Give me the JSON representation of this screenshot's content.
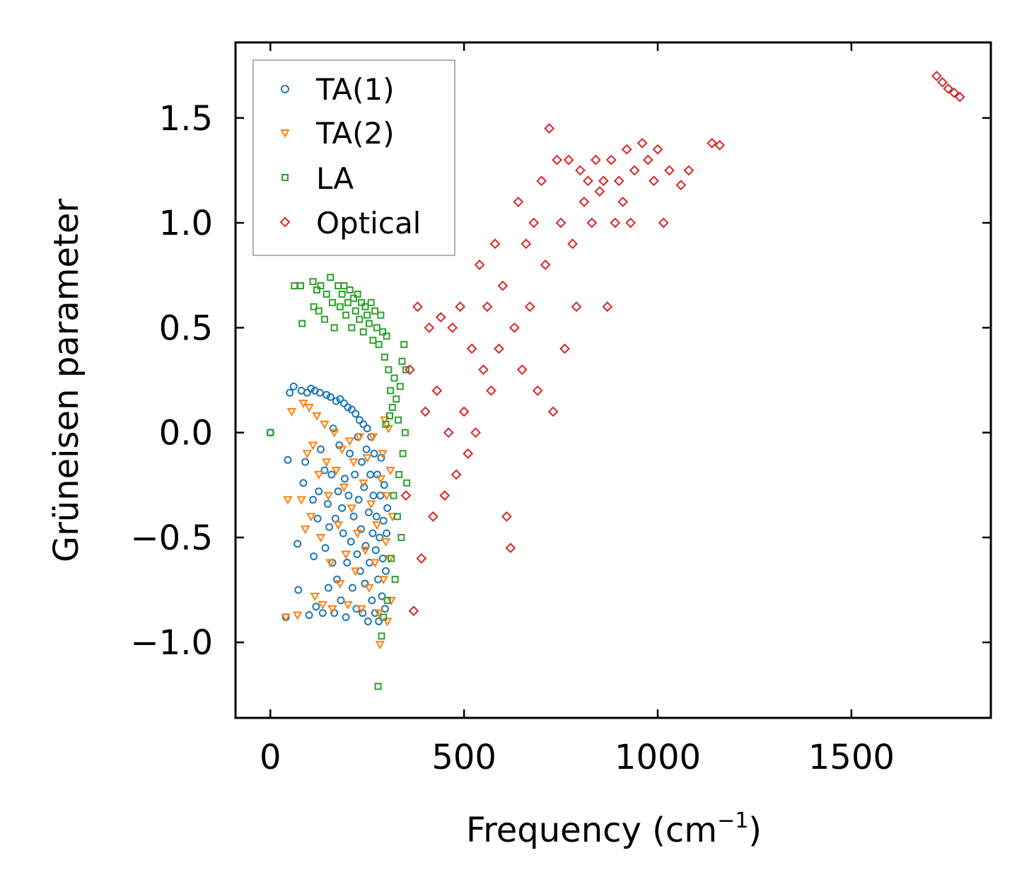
{
  "chart_data": {
    "type": "scatter",
    "title": "",
    "xlabel": "Frequency (cm",
    "xlabel_sup": "−1",
    "xlabel_close": ")",
    "ylabel": "Grüneisen parameter",
    "xlim": [
      -90,
      1860
    ],
    "ylim": [
      -1.36,
      1.86
    ],
    "xticks": [
      0,
      500,
      1000,
      1500
    ],
    "xtick_labels": [
      "0",
      "500",
      "1000",
      "1500"
    ],
    "yticks": [
      -1.0,
      -0.5,
      0.0,
      0.5,
      1.0,
      1.5
    ],
    "ytick_labels": [
      "−1.0",
      "−0.5",
      "0.0",
      "0.5",
      "1.0",
      "1.5"
    ],
    "legend_position": "top-left",
    "series": [
      {
        "name": "TA(1)",
        "marker": "circle",
        "color": "#1f77b4",
        "points": [
          [
            0,
            0.0
          ],
          [
            40,
            -0.88
          ],
          [
            45,
            -0.13
          ],
          [
            50,
            0.19
          ],
          [
            60,
            0.22
          ],
          [
            70,
            -0.53
          ],
          [
            72,
            -0.75
          ],
          [
            80,
            0.2
          ],
          [
            85,
            -0.24
          ],
          [
            90,
            -0.14
          ],
          [
            95,
            0.19
          ],
          [
            100,
            -0.87
          ],
          [
            105,
            0.21
          ],
          [
            110,
            -0.32
          ],
          [
            112,
            -0.59
          ],
          [
            115,
            0.2
          ],
          [
            118,
            -0.83
          ],
          [
            122,
            -0.41
          ],
          [
            125,
            -0.28
          ],
          [
            128,
            0.19
          ],
          [
            130,
            -0.08
          ],
          [
            135,
            -0.86
          ],
          [
            140,
            -0.18
          ],
          [
            142,
            -0.55
          ],
          [
            145,
            0.18
          ],
          [
            148,
            -0.34
          ],
          [
            150,
            -0.74
          ],
          [
            152,
            -0.45
          ],
          [
            155,
            0.17
          ],
          [
            158,
            -0.2
          ],
          [
            160,
            -0.62
          ],
          [
            162,
            0.02
          ],
          [
            165,
            -0.86
          ],
          [
            168,
            -0.41
          ],
          [
            170,
            0.15
          ],
          [
            172,
            -0.7
          ],
          [
            175,
            -0.28
          ],
          [
            178,
            -0.06
          ],
          [
            180,
            0.16
          ],
          [
            182,
            -0.8
          ],
          [
            185,
            -0.36
          ],
          [
            188,
            -0.48
          ],
          [
            190,
            0.14
          ],
          [
            192,
            -0.22
          ],
          [
            195,
            -0.88
          ],
          [
            198,
            -0.62
          ],
          [
            200,
            0.12
          ],
          [
            202,
            -0.3
          ],
          [
            205,
            -0.1
          ],
          [
            208,
            -0.52
          ],
          [
            210,
            0.11
          ],
          [
            212,
            -0.74
          ],
          [
            215,
            -0.4
          ],
          [
            218,
            -0.2
          ],
          [
            220,
            0.09
          ],
          [
            222,
            -0.84
          ],
          [
            224,
            -0.58
          ],
          [
            226,
            -0.02
          ],
          [
            228,
            -0.32
          ],
          [
            230,
            0.06
          ],
          [
            232,
            -0.66
          ],
          [
            234,
            -0.46
          ],
          [
            236,
            -0.14
          ],
          [
            238,
            -0.86
          ],
          [
            240,
            0.04
          ],
          [
            242,
            -0.26
          ],
          [
            244,
            -0.72
          ],
          [
            246,
            -0.54
          ],
          [
            248,
            -0.08
          ],
          [
            250,
            0.02
          ],
          [
            252,
            -0.9
          ],
          [
            254,
            -0.38
          ],
          [
            256,
            -0.62
          ],
          [
            258,
            -0.2
          ],
          [
            260,
            -0.02
          ],
          [
            262,
            -0.8
          ],
          [
            264,
            -0.48
          ],
          [
            266,
            -0.3
          ],
          [
            268,
            -0.1
          ],
          [
            270,
            -0.86
          ],
          [
            272,
            -0.56
          ],
          [
            274,
            -0.4
          ],
          [
            276,
            -0.2
          ],
          [
            278,
            -0.7
          ],
          [
            280,
            -0.9
          ],
          [
            282,
            -0.5
          ],
          [
            284,
            -0.3
          ],
          [
            286,
            -0.12
          ],
          [
            288,
            -0.78
          ],
          [
            290,
            -0.6
          ],
          [
            292,
            -0.42
          ],
          [
            294,
            -0.25
          ],
          [
            296,
            -0.84
          ],
          [
            298,
            -0.66
          ],
          [
            300,
            -0.48
          ],
          [
            302,
            -0.36
          ]
        ]
      },
      {
        "name": "TA(2)",
        "marker": "triangle",
        "color": "#ff7f0e",
        "points": [
          [
            40,
            -0.88
          ],
          [
            45,
            -0.32
          ],
          [
            55,
            0.1
          ],
          [
            70,
            -0.87
          ],
          [
            80,
            -0.32
          ],
          [
            85,
            0.14
          ],
          [
            90,
            -0.46
          ],
          [
            95,
            -0.1
          ],
          [
            100,
            0.12
          ],
          [
            105,
            -0.4
          ],
          [
            110,
            -0.06
          ],
          [
            115,
            -0.78
          ],
          [
            120,
            0.08
          ],
          [
            125,
            -0.2
          ],
          [
            130,
            -0.5
          ],
          [
            135,
            -0.82
          ],
          [
            140,
            0.04
          ],
          [
            145,
            -0.14
          ],
          [
            150,
            -0.3
          ],
          [
            155,
            -0.62
          ],
          [
            160,
            -0.84
          ],
          [
            165,
            0.0
          ],
          [
            170,
            -0.18
          ],
          [
            175,
            -0.44
          ],
          [
            180,
            -0.72
          ],
          [
            185,
            -0.08
          ],
          [
            190,
            -0.26
          ],
          [
            195,
            -0.58
          ],
          [
            200,
            -0.82
          ],
          [
            205,
            -0.04
          ],
          [
            210,
            -0.36
          ],
          [
            215,
            -0.14
          ],
          [
            220,
            -0.66
          ],
          [
            225,
            -0.48
          ],
          [
            230,
            -0.02
          ],
          [
            235,
            -0.84
          ],
          [
            240,
            -0.24
          ],
          [
            245,
            -0.56
          ],
          [
            250,
            -0.12
          ],
          [
            255,
            -0.74
          ],
          [
            260,
            -0.34
          ],
          [
            265,
            -0.02
          ],
          [
            270,
            -0.62
          ],
          [
            275,
            -0.44
          ],
          [
            280,
            -0.86
          ],
          [
            283,
            -1.01
          ],
          [
            285,
            -0.22
          ],
          [
            290,
            -0.1
          ],
          [
            292,
            -0.7
          ],
          [
            295,
            0.06
          ],
          [
            298,
            -0.52
          ],
          [
            300,
            -0.3
          ],
          [
            302,
            -0.9
          ],
          [
            305,
            0.02
          ],
          [
            308,
            -0.6
          ],
          [
            310,
            -0.18
          ],
          [
            312,
            -0.8
          ],
          [
            315,
            -0.4
          ]
        ]
      },
      {
        "name": "LA",
        "marker": "square",
        "color": "#2ca02c",
        "points": [
          [
            0,
            0.0
          ],
          [
            62,
            0.7
          ],
          [
            78,
            0.7
          ],
          [
            82,
            0.52
          ],
          [
            110,
            0.72
          ],
          [
            112,
            0.6
          ],
          [
            120,
            0.68
          ],
          [
            125,
            0.58
          ],
          [
            130,
            0.7
          ],
          [
            140,
            0.54
          ],
          [
            145,
            0.66
          ],
          [
            155,
            0.74
          ],
          [
            160,
            0.62
          ],
          [
            165,
            0.5
          ],
          [
            175,
            0.7
          ],
          [
            180,
            0.6
          ],
          [
            185,
            0.66
          ],
          [
            190,
            0.7
          ],
          [
            195,
            0.56
          ],
          [
            200,
            0.62
          ],
          [
            205,
            0.68
          ],
          [
            210,
            0.5
          ],
          [
            215,
            0.64
          ],
          [
            220,
            0.58
          ],
          [
            225,
            0.66
          ],
          [
            230,
            0.54
          ],
          [
            235,
            0.62
          ],
          [
            240,
            0.48
          ],
          [
            245,
            0.6
          ],
          [
            250,
            0.56
          ],
          [
            255,
            0.52
          ],
          [
            260,
            0.62
          ],
          [
            265,
            0.44
          ],
          [
            270,
            0.58
          ],
          [
            275,
            0.5
          ],
          [
            278,
            -1.21
          ],
          [
            280,
            0.42
          ],
          [
            285,
            0.56
          ],
          [
            287,
            -0.97
          ],
          [
            290,
            0.48
          ],
          [
            292,
            -0.88
          ],
          [
            295,
            0.36
          ],
          [
            298,
            0.04
          ],
          [
            300,
            0.46
          ],
          [
            302,
            -0.8
          ],
          [
            305,
            0.3
          ],
          [
            308,
            0.08
          ],
          [
            310,
            0.2
          ],
          [
            312,
            -0.6
          ],
          [
            315,
            0.12
          ],
          [
            318,
            -0.3
          ],
          [
            320,
            0.26
          ],
          [
            322,
            -0.7
          ],
          [
            325,
            0.16
          ],
          [
            328,
            -0.4
          ],
          [
            330,
            0.06
          ],
          [
            332,
            -0.2
          ],
          [
            335,
            0.22
          ],
          [
            338,
            -0.5
          ],
          [
            340,
            0.34
          ],
          [
            342,
            -0.1
          ],
          [
            345,
            0.42
          ],
          [
            348,
            0.0
          ],
          [
            350,
            0.3
          ],
          [
            352,
            -0.24
          ]
        ]
      },
      {
        "name": "Optical",
        "marker": "diamond",
        "color": "#d62728",
        "points": [
          [
            350,
            -0.3
          ],
          [
            360,
            0.3
          ],
          [
            370,
            -0.85
          ],
          [
            380,
            0.6
          ],
          [
            390,
            -0.6
          ],
          [
            400,
            0.1
          ],
          [
            410,
            0.5
          ],
          [
            420,
            -0.4
          ],
          [
            430,
            0.2
          ],
          [
            440,
            0.55
          ],
          [
            450,
            -0.3
          ],
          [
            460,
            0.0
          ],
          [
            470,
            0.5
          ],
          [
            480,
            -0.2
          ],
          [
            490,
            0.6
          ],
          [
            500,
            0.1
          ],
          [
            510,
            -0.1
          ],
          [
            520,
            0.4
          ],
          [
            530,
            0.0
          ],
          [
            540,
            0.8
          ],
          [
            550,
            0.3
          ],
          [
            560,
            0.6
          ],
          [
            570,
            0.2
          ],
          [
            580,
            0.9
          ],
          [
            590,
            0.4
          ],
          [
            600,
            0.7
          ],
          [
            610,
            -0.4
          ],
          [
            620,
            -0.55
          ],
          [
            630,
            0.5
          ],
          [
            640,
            1.1
          ],
          [
            650,
            0.3
          ],
          [
            660,
            0.9
          ],
          [
            670,
            0.6
          ],
          [
            680,
            1.0
          ],
          [
            690,
            0.2
          ],
          [
            700,
            1.2
          ],
          [
            710,
            0.8
          ],
          [
            720,
            1.45
          ],
          [
            730,
            0.1
          ],
          [
            740,
            1.3
          ],
          [
            750,
            1.0
          ],
          [
            760,
            0.4
          ],
          [
            770,
            1.3
          ],
          [
            780,
            0.9
          ],
          [
            790,
            0.6
          ],
          [
            800,
            1.25
          ],
          [
            810,
            1.1
          ],
          [
            820,
            1.2
          ],
          [
            830,
            1.0
          ],
          [
            840,
            1.3
          ],
          [
            850,
            1.15
          ],
          [
            860,
            1.2
          ],
          [
            870,
            0.6
          ],
          [
            880,
            1.3
          ],
          [
            890,
            1.0
          ],
          [
            900,
            1.2
          ],
          [
            910,
            1.1
          ],
          [
            920,
            1.35
          ],
          [
            930,
            1.0
          ],
          [
            940,
            1.25
          ],
          [
            960,
            1.38
          ],
          [
            975,
            1.3
          ],
          [
            990,
            1.2
          ],
          [
            1000,
            1.35
          ],
          [
            1015,
            1.0
          ],
          [
            1030,
            1.25
          ],
          [
            1060,
            1.18
          ],
          [
            1080,
            1.25
          ],
          [
            1140,
            1.38
          ],
          [
            1160,
            1.37
          ],
          [
            1720,
            1.7
          ],
          [
            1735,
            1.67
          ],
          [
            1750,
            1.64
          ],
          [
            1765,
            1.62
          ],
          [
            1780,
            1.6
          ]
        ]
      }
    ]
  }
}
